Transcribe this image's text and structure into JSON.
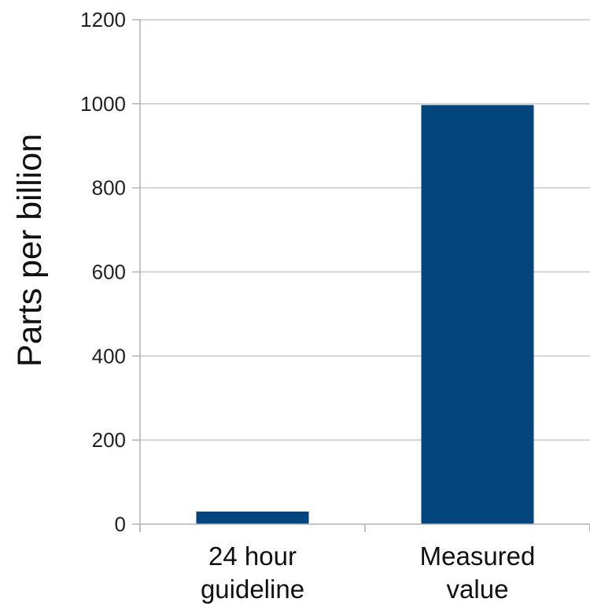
{
  "chart_data": {
    "type": "bar",
    "title": "",
    "xlabel": "",
    "ylabel": "Parts per billion",
    "categories": [
      [
        "24 hour",
        "guideline"
      ],
      [
        "Measured",
        "value"
      ]
    ],
    "values": [
      30,
      997
    ],
    "ylim": [
      0,
      1200
    ],
    "yticks": [
      0,
      200,
      400,
      600,
      800,
      1000,
      1200
    ],
    "grid": true,
    "legend": "none",
    "bar_color": "#02457f",
    "grid_color": "#c8c8c8",
    "axis_color": "#b3b3b3"
  }
}
